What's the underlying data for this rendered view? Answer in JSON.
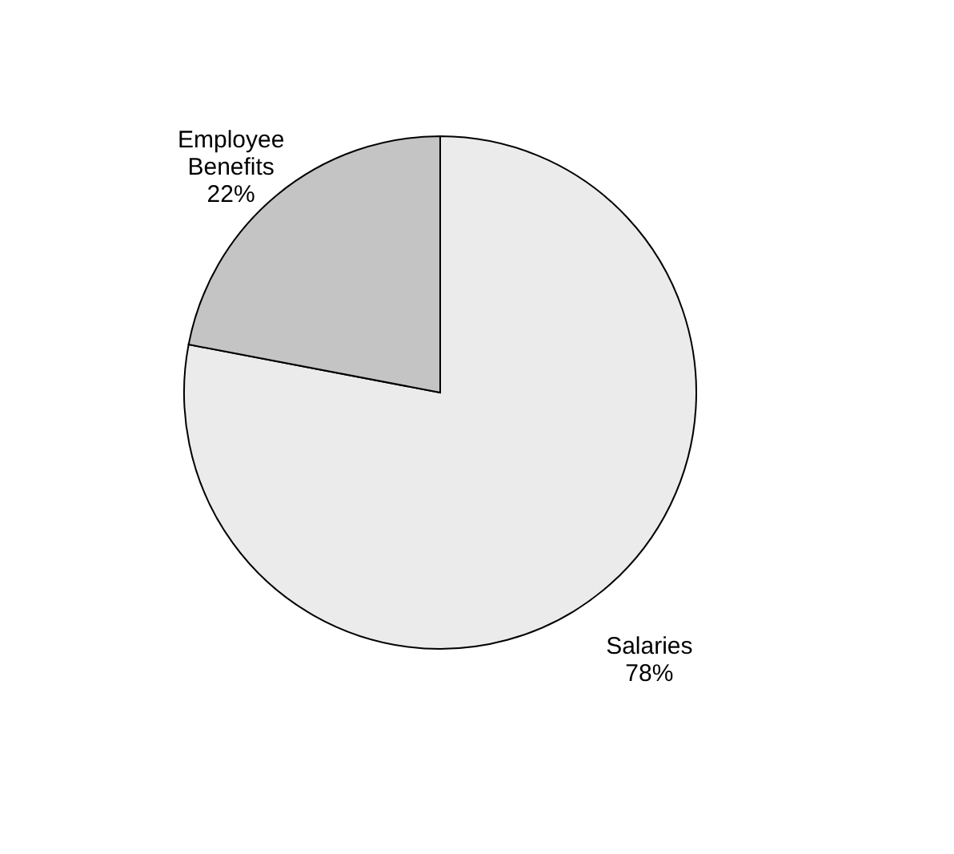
{
  "chart_data": {
    "type": "pie",
    "categories": [
      "Salaries",
      "Employee Benefits"
    ],
    "values": [
      78,
      22
    ],
    "colors": [
      "#ebebeb",
      "#c4c4c4"
    ],
    "value_labels": [
      "78%",
      "22%"
    ]
  }
}
